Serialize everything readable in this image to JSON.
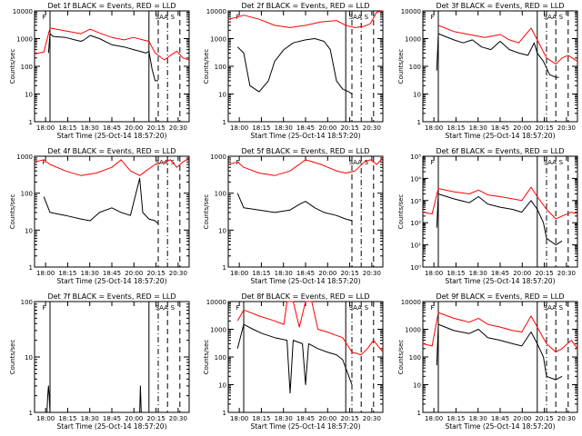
{
  "chart_data": [
    {
      "type": "line",
      "title": "Det 1f BLACK = Events, RED = LLD",
      "xlabel": "Start Time (25-Oct-14 18:57:20)",
      "ylabel": "Counts/sec",
      "xticks": [
        "18:00",
        "18:15",
        "18:30",
        "18:45",
        "20:00",
        "20:15",
        "20:30"
      ],
      "ylim": [
        1,
        10000
      ],
      "yscale": "log",
      "yticks": [
        "1",
        "10",
        "100",
        "1000",
        "10000"
      ],
      "flags": [
        "F",
        "SAA",
        "S"
      ],
      "series": [
        {
          "color": "#000000",
          "x": [
            0.0,
            0.06,
            0.09,
            0.1,
            0.12,
            0.2,
            0.26,
            0.3,
            0.32,
            0.36,
            0.42,
            0.5,
            0.58,
            0.64,
            0.68,
            0.72,
            0.74,
            0.76,
            0.78,
            0.8
          ],
          "y": [
            null,
            null,
            300,
            1500,
            1200,
            1100,
            900,
            800,
            900,
            1300,
            1000,
            600,
            500,
            400,
            350,
            300,
            350,
            80,
            30,
            30
          ]
        },
        {
          "color": "#ff0000",
          "x": [
            0.0,
            0.06,
            0.1,
            0.2,
            0.3,
            0.36,
            0.42,
            0.5,
            0.58,
            0.64,
            0.7,
            0.74,
            0.78,
            0.84,
            0.88,
            0.92,
            0.96,
            1.0
          ],
          "y": [
            280,
            330,
            2400,
            1900,
            1500,
            2200,
            1600,
            1100,
            900,
            1100,
            900,
            800,
            300,
            170,
            250,
            350,
            200,
            170
          ]
        }
      ],
      "vlines": [
        {
          "x": 0.1,
          "style": "solid"
        },
        {
          "x": 0.74,
          "style": "solid"
        },
        {
          "x": 0.8,
          "style": "dashed"
        },
        {
          "x": 0.86,
          "style": "dashdot"
        },
        {
          "x": 0.94,
          "style": "dashed"
        }
      ]
    },
    {
      "type": "line",
      "title": "Det 2f BLACK = Events, RED = LLD",
      "xlabel": "Start Time (25-Oct-14 18:57:20)",
      "ylabel": "Counts/sec",
      "xticks": [
        "18:00",
        "18:15",
        "18:30",
        "18:45",
        "20:00",
        "20:15",
        "20:30"
      ],
      "ylim": [
        1,
        10000
      ],
      "yscale": "log",
      "yticks": [
        "1",
        "10",
        "100",
        "1000",
        "10000"
      ],
      "flags": [
        "F",
        "SAA",
        "S"
      ],
      "series": [
        {
          "color": "#000000",
          "x": [
            0.0,
            0.06,
            0.1,
            0.14,
            0.2,
            0.26,
            0.3,
            0.36,
            0.42,
            0.5,
            0.56,
            0.62,
            0.66,
            0.7,
            0.74,
            0.78,
            0.8
          ],
          "y": [
            null,
            500,
            300,
            20,
            12,
            30,
            150,
            400,
            700,
            900,
            1000,
            800,
            400,
            30,
            15,
            12,
            10
          ]
        },
        {
          "color": "#ff0000",
          "x": [
            0.0,
            0.06,
            0.1,
            0.2,
            0.3,
            0.4,
            0.5,
            0.6,
            0.7,
            0.76,
            0.82,
            0.88,
            0.92,
            0.96,
            1.0
          ],
          "y": [
            5000,
            6000,
            7000,
            5000,
            3000,
            2500,
            3000,
            4000,
            4500,
            3000,
            2500,
            2800,
            3500,
            9000,
            10000
          ]
        }
      ],
      "vlines": [
        {
          "x": 0.76,
          "style": "solid"
        },
        {
          "x": 0.8,
          "style": "dashed"
        },
        {
          "x": 0.86,
          "style": "dashdot"
        },
        {
          "x": 0.94,
          "style": "dashed"
        }
      ]
    },
    {
      "type": "line",
      "title": "Det 3f BLACK = Events, RED = LLD",
      "xlabel": "Start Time (25-Oct-14 18:57:20)",
      "ylabel": "Counts/sec",
      "xticks": [
        "18:00",
        "18:15",
        "18:30",
        "18:45",
        "20:00",
        "20:15",
        "20:30"
      ],
      "ylim": [
        1,
        10000
      ],
      "yscale": "log",
      "yticks": [
        "1",
        "10",
        "100",
        "1000",
        "10000"
      ],
      "flags": [
        "F",
        "SAA",
        "S"
      ],
      "series": [
        {
          "color": "#000000",
          "x": [
            0.0,
            0.06,
            0.09,
            0.1,
            0.2,
            0.26,
            0.32,
            0.38,
            0.44,
            0.5,
            0.56,
            0.62,
            0.68,
            0.72,
            0.74,
            0.78,
            0.82,
            0.86,
            0.88
          ],
          "y": [
            null,
            null,
            70,
            1500,
            900,
            700,
            900,
            500,
            400,
            800,
            400,
            300,
            250,
            700,
            300,
            150,
            50,
            40,
            40
          ]
        },
        {
          "color": "#ff0000",
          "x": [
            0.0,
            0.06,
            0.1,
            0.2,
            0.3,
            0.4,
            0.5,
            0.56,
            0.62,
            0.7,
            0.74,
            0.8,
            0.86,
            0.9,
            0.94,
            1.0
          ],
          "y": [
            null,
            null,
            3000,
            1800,
            1400,
            1100,
            1400,
            900,
            700,
            2400,
            900,
            200,
            120,
            200,
            250,
            150
          ]
        }
      ],
      "vlines": [
        {
          "x": 0.1,
          "style": "solid"
        },
        {
          "x": 0.74,
          "style": "solid"
        },
        {
          "x": 0.8,
          "style": "dashdot"
        },
        {
          "x": 0.86,
          "style": "dashed"
        },
        {
          "x": 0.94,
          "style": "dashed"
        }
      ]
    },
    {
      "type": "line",
      "title": "Det 4f BLACK = Events, RED = LLD",
      "xlabel": "Start Time (25-Oct-14 18:57:20)",
      "ylabel": "Counts/sec",
      "xticks": [
        "18:00",
        "18:15",
        "18:30",
        "18:45",
        "20:00",
        "20:15",
        "20:30"
      ],
      "ylim": [
        1,
        1000
      ],
      "yscale": "log",
      "yticks": [
        "1",
        "10",
        "100",
        "1000"
      ],
      "flags": [
        "F",
        "SAA",
        "S"
      ],
      "series": [
        {
          "color": "#000000",
          "x": [
            0.0,
            0.06,
            0.1,
            0.2,
            0.3,
            0.36,
            0.42,
            0.5,
            0.56,
            0.62,
            0.68,
            0.7,
            0.74,
            0.78,
            0.8
          ],
          "y": [
            null,
            80,
            30,
            25,
            20,
            18,
            30,
            40,
            30,
            25,
            250,
            30,
            20,
            18,
            15
          ]
        },
        {
          "color": "#ff0000",
          "x": [
            0.0,
            0.06,
            0.1,
            0.2,
            0.3,
            0.4,
            0.5,
            0.56,
            0.62,
            0.68,
            0.72,
            0.78,
            0.84,
            0.88,
            0.92,
            0.96,
            1.0
          ],
          "y": [
            700,
            800,
            600,
            400,
            300,
            350,
            500,
            800,
            400,
            300,
            400,
            600,
            700,
            800,
            500,
            700,
            900
          ]
        }
      ],
      "vlines": [
        {
          "x": 0.8,
          "style": "dashed"
        },
        {
          "x": 0.86,
          "style": "dashdot"
        },
        {
          "x": 0.94,
          "style": "dashed"
        }
      ]
    },
    {
      "type": "line",
      "title": "Det 5f BLACK = Events, RED = LLD",
      "xlabel": "Start Time (25-Oct-14 18:57:20)",
      "ylabel": "Counts/sec",
      "xticks": [
        "18:00",
        "18:15",
        "18:30",
        "18:45",
        "20:00",
        "20:15",
        "20:30"
      ],
      "ylim": [
        1,
        1000
      ],
      "yscale": "log",
      "yticks": [
        "1",
        "10",
        "100",
        "1000"
      ],
      "flags": [
        "F",
        "SAA",
        "S"
      ],
      "series": [
        {
          "color": "#000000",
          "x": [
            0.0,
            0.06,
            0.1,
            0.2,
            0.3,
            0.4,
            0.46,
            0.5,
            0.56,
            0.62,
            0.7,
            0.76,
            0.8
          ],
          "y": [
            null,
            100,
            40,
            35,
            30,
            35,
            50,
            60,
            40,
            30,
            25,
            20,
            18
          ]
        },
        {
          "color": "#ff0000",
          "x": [
            0.0,
            0.06,
            0.1,
            0.2,
            0.3,
            0.4,
            0.5,
            0.6,
            0.7,
            0.76,
            0.82,
            0.88,
            0.92,
            0.96,
            1.0
          ],
          "y": [
            600,
            700,
            500,
            350,
            300,
            400,
            800,
            600,
            400,
            350,
            400,
            700,
            800,
            600,
            900
          ]
        }
      ],
      "vlines": [
        {
          "x": 0.8,
          "style": "dashed"
        },
        {
          "x": 0.86,
          "style": "dashdot"
        },
        {
          "x": 0.94,
          "style": "dashed"
        }
      ]
    },
    {
      "type": "line",
      "title": "Det 6f BLACK = Events, RED = LLD",
      "xlabel": "Start Time (25-Oct-14 18:57:20)",
      "ylabel": "Counts/sec",
      "xticks": [
        "18:00",
        "18:15",
        "18:30",
        "18:45",
        "20:00",
        "20:15",
        "20:30"
      ],
      "ylim": [
        1,
        100000
      ],
      "yscale": "log",
      "yticks": [
        "10⁰",
        "10¹",
        "10²",
        "10³",
        "10⁴",
        "10⁵"
      ],
      "flags": [
        "F",
        "SAA",
        "S"
      ],
      "series": [
        {
          "color": "#000000",
          "x": [
            0.0,
            0.06,
            0.09,
            0.1,
            0.2,
            0.3,
            0.36,
            0.42,
            0.5,
            0.58,
            0.64,
            0.7,
            0.74,
            0.78,
            0.8,
            0.86,
            0.9
          ],
          "y": [
            null,
            null,
            60,
            2000,
            1200,
            800,
            1500,
            700,
            500,
            400,
            300,
            1000,
            400,
            100,
            20,
            10,
            15
          ]
        },
        {
          "color": "#ff0000",
          "x": [
            0.0,
            0.06,
            0.1,
            0.2,
            0.3,
            0.36,
            0.42,
            0.5,
            0.58,
            0.64,
            0.7,
            0.74,
            0.8,
            0.86,
            0.9,
            0.96,
            1.0
          ],
          "y": [
            300,
            250,
            3500,
            2500,
            2000,
            3000,
            1800,
            1500,
            1200,
            1000,
            4000,
            1500,
            400,
            150,
            200,
            300,
            250
          ]
        }
      ],
      "vlines": [
        {
          "x": 0.1,
          "style": "solid"
        },
        {
          "x": 0.74,
          "style": "solid"
        },
        {
          "x": 0.8,
          "style": "dashdot"
        },
        {
          "x": 0.86,
          "style": "dashed"
        },
        {
          "x": 0.94,
          "style": "dashed"
        }
      ]
    },
    {
      "type": "line",
      "title": "Det 7f BLACK = Events, RED = LLD",
      "xlabel": "Start Time (25-Oct-14 18:57:20)",
      "ylabel": "Counts/sec",
      "xticks": [
        "18:00",
        "18:15",
        "18:30",
        "18:45",
        "20:00",
        "20:15",
        "20:30"
      ],
      "ylim": [
        1,
        100
      ],
      "yscale": "log",
      "yticks": [
        "1",
        "10",
        "100"
      ],
      "flags": [
        "F",
        "SAA",
        "S"
      ],
      "series": [
        {
          "color": "#000000",
          "x": [
            0.0,
            0.08,
            0.085,
            0.09,
            0.095,
            0.1,
            0.68,
            0.685,
            0.69,
            0.695,
            0.7,
            0.8
          ],
          "y": [
            1,
            1,
            2,
            3,
            2,
            1,
            1,
            3,
            1,
            1,
            1,
            1
          ]
        }
      ],
      "vlines": [
        {
          "x": 0.1,
          "style": "solid"
        },
        {
          "x": 0.74,
          "style": "solid"
        },
        {
          "x": 0.8,
          "style": "dashdot"
        },
        {
          "x": 0.86,
          "style": "dashed"
        },
        {
          "x": 0.94,
          "style": "dashed"
        }
      ]
    },
    {
      "type": "line",
      "title": "Det 8f BLACK = Events, RED = LLD",
      "xlabel": "Start Time (25-Oct-14 18:57:20)",
      "ylabel": "Counts/sec",
      "xticks": [
        "18:00",
        "18:15",
        "18:30",
        "18:45",
        "20:00",
        "20:15",
        "20:30"
      ],
      "ylim": [
        1,
        10000
      ],
      "yscale": "log",
      "yticks": [
        "1",
        "10",
        "100",
        "1000",
        "10000"
      ],
      "flags": [
        "F",
        "SAA",
        "S"
      ],
      "series": [
        {
          "color": "#000000",
          "x": [
            0.0,
            0.06,
            0.1,
            0.16,
            0.22,
            0.3,
            0.38,
            0.4,
            0.42,
            0.48,
            0.5,
            0.52,
            0.58,
            0.64,
            0.7,
            0.74,
            0.78,
            0.8
          ],
          "y": [
            null,
            200,
            1500,
            1000,
            700,
            500,
            400,
            5,
            400,
            300,
            10,
            300,
            200,
            150,
            120,
            80,
            20,
            10
          ]
        },
        {
          "color": "#ff0000",
          "x": [
            0.0,
            0.06,
            0.1,
            0.2,
            0.3,
            0.36,
            0.38,
            0.42,
            0.46,
            0.5,
            0.54,
            0.58,
            0.64,
            0.7,
            0.74,
            0.8,
            0.86,
            0.9,
            0.94,
            1.0
          ],
          "y": [
            null,
            2000,
            5000,
            3000,
            2000,
            1500,
            10000,
            10000,
            1200,
            10000,
            10000,
            1000,
            800,
            600,
            500,
            150,
            120,
            200,
            400,
            150
          ]
        }
      ],
      "vlines": [
        {
          "x": 0.1,
          "style": "solid"
        },
        {
          "x": 0.76,
          "style": "solid"
        },
        {
          "x": 0.8,
          "style": "dashdot"
        },
        {
          "x": 0.86,
          "style": "dashed"
        },
        {
          "x": 0.94,
          "style": "dashed"
        }
      ]
    },
    {
      "type": "line",
      "title": "Det 9f BLACK = Events, RED = LLD",
      "xlabel": "Start Time (25-Oct-14 18:57:20)",
      "ylabel": "Counts/sec",
      "xticks": [
        "18:00",
        "18:15",
        "18:30",
        "18:45",
        "20:00",
        "20:15",
        "20:30"
      ],
      "ylim": [
        1,
        10000
      ],
      "yscale": "log",
      "yticks": [
        "1",
        "10",
        "100",
        "1000",
        "10000"
      ],
      "flags": [
        "F",
        "SAA",
        "S"
      ],
      "series": [
        {
          "color": "#000000",
          "x": [
            0.0,
            0.06,
            0.09,
            0.1,
            0.2,
            0.3,
            0.36,
            0.42,
            0.5,
            0.58,
            0.64,
            0.7,
            0.74,
            0.78,
            0.8,
            0.86,
            0.9
          ],
          "y": [
            null,
            null,
            50,
            1500,
            900,
            700,
            1000,
            500,
            400,
            300,
            250,
            800,
            300,
            100,
            20,
            15,
            20
          ]
        },
        {
          "color": "#ff0000",
          "x": [
            0.0,
            0.06,
            0.1,
            0.2,
            0.3,
            0.36,
            0.42,
            0.5,
            0.58,
            0.64,
            0.7,
            0.74,
            0.8,
            0.86,
            0.9,
            0.96,
            1.0
          ],
          "y": [
            300,
            250,
            4000,
            2500,
            1800,
            2500,
            1500,
            1200,
            900,
            800,
            3000,
            1200,
            300,
            150,
            200,
            400,
            200
          ]
        }
      ],
      "vlines": [
        {
          "x": 0.1,
          "style": "solid"
        },
        {
          "x": 0.74,
          "style": "solid"
        },
        {
          "x": 0.8,
          "style": "dashdot"
        },
        {
          "x": 0.86,
          "style": "dashed"
        },
        {
          "x": 0.94,
          "style": "dashed"
        }
      ]
    }
  ]
}
